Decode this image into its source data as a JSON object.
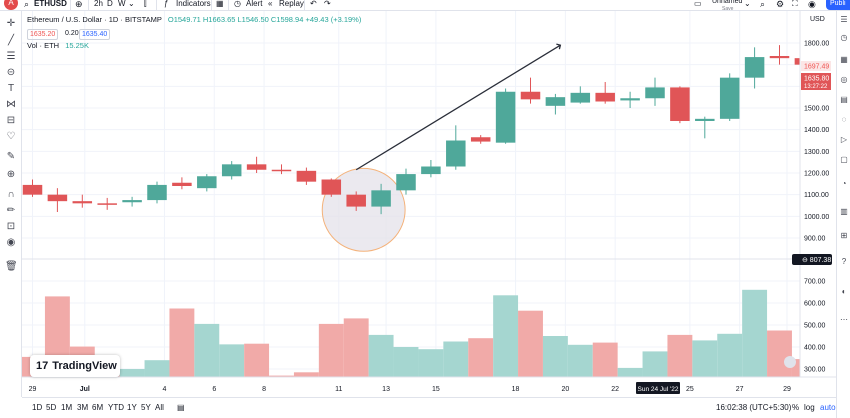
{
  "topbar": {
    "avatar_letter": "A",
    "symbol": "ETHUSD",
    "interval": "2h",
    "interval_d": "D",
    "interval_w": "W",
    "indicators_label": "Indicators",
    "alert_label": "Alert",
    "replay_label": "Replay",
    "layout_name": "Unnamed",
    "layout_sub": "Save",
    "publish_label": "Publi"
  },
  "legend": {
    "title": "Ethereum / U.S. Dollar · 1D · BITSTAMP",
    "ohlc": "O1549.71 H1663.65 L1546.50 C1598.94 +49.43 (+3.19%)",
    "bid": "1635.20",
    "spread": "0.20",
    "ask": "1635.40",
    "volume_label": "Vol · ETH",
    "volume_value": "15.25K"
  },
  "watermark": {
    "logo": "TradingView",
    "logo_mark": "17"
  },
  "bottombar": {
    "ranges": [
      "1D",
      "5D",
      "1M",
      "3M",
      "6M",
      "YTD",
      "1Y",
      "5Y",
      "All"
    ],
    "time": "16:02:38 (UTC+5:30)",
    "percent": "%",
    "log": "log",
    "auto": "auto"
  },
  "chart_data": {
    "type": "candlestick",
    "currency_label": "USD",
    "price_ticks": [
      "1800.00",
      "1700.00",
      "1600.00",
      "1500.00",
      "1400.00",
      "1300.00",
      "1200.00",
      "1100.00",
      "1000.00",
      "900.00"
    ],
    "volume_ticks": [
      "700.00",
      "600.00",
      "500.00",
      "400.00",
      "300.00"
    ],
    "x_labels": [
      "29",
      "Jul",
      "4",
      "6",
      "8",
      "11",
      "13",
      "15",
      "18",
      "20",
      "22",
      "25",
      "27",
      "29"
    ],
    "crosshair_date": "Sun 24 Jul '22",
    "last_price_label": "1697.49",
    "bid_ask_label": "1635.80",
    "countdown_label": "13:27:22",
    "crosshair_price": "807.38",
    "candles": [
      {
        "o": 1145,
        "h": 1170,
        "l": 1090,
        "c": 1100
      },
      {
        "o": 1100,
        "h": 1130,
        "l": 1020,
        "c": 1070
      },
      {
        "o": 1070,
        "h": 1100,
        "l": 1040,
        "c": 1060
      },
      {
        "o": 1060,
        "h": 1085,
        "l": 1030,
        "c": 1055
      },
      {
        "o": 1065,
        "h": 1090,
        "l": 1045,
        "c": 1075
      },
      {
        "o": 1075,
        "h": 1160,
        "l": 1060,
        "c": 1145
      },
      {
        "o": 1155,
        "h": 1180,
        "l": 1125,
        "c": 1140
      },
      {
        "o": 1130,
        "h": 1195,
        "l": 1115,
        "c": 1185
      },
      {
        "o": 1185,
        "h": 1255,
        "l": 1170,
        "c": 1240
      },
      {
        "o": 1240,
        "h": 1275,
        "l": 1200,
        "c": 1215
      },
      {
        "o": 1215,
        "h": 1240,
        "l": 1195,
        "c": 1210
      },
      {
        "o": 1210,
        "h": 1225,
        "l": 1145,
        "c": 1160
      },
      {
        "o": 1170,
        "h": 1175,
        "l": 1090,
        "c": 1100
      },
      {
        "o": 1100,
        "h": 1115,
        "l": 1025,
        "c": 1045
      },
      {
        "o": 1045,
        "h": 1150,
        "l": 1010,
        "c": 1120
      },
      {
        "o": 1120,
        "h": 1220,
        "l": 1100,
        "c": 1195
      },
      {
        "o": 1195,
        "h": 1260,
        "l": 1180,
        "c": 1230
      },
      {
        "o": 1230,
        "h": 1420,
        "l": 1215,
        "c": 1350
      },
      {
        "o": 1365,
        "h": 1375,
        "l": 1335,
        "c": 1345
      },
      {
        "o": 1340,
        "h": 1590,
        "l": 1335,
        "c": 1575
      },
      {
        "o": 1575,
        "h": 1640,
        "l": 1520,
        "c": 1540
      },
      {
        "o": 1510,
        "h": 1565,
        "l": 1470,
        "c": 1550
      },
      {
        "o": 1525,
        "h": 1600,
        "l": 1520,
        "c": 1570
      },
      {
        "o": 1570,
        "h": 1620,
        "l": 1520,
        "c": 1530
      },
      {
        "o": 1535,
        "h": 1575,
        "l": 1500,
        "c": 1545
      },
      {
        "o": 1545,
        "h": 1640,
        "l": 1510,
        "c": 1595
      },
      {
        "o": 1595,
        "h": 1600,
        "l": 1430,
        "c": 1440
      },
      {
        "o": 1440,
        "h": 1460,
        "l": 1360,
        "c": 1450
      },
      {
        "o": 1450,
        "h": 1660,
        "l": 1440,
        "c": 1640
      },
      {
        "o": 1640,
        "h": 1780,
        "l": 1590,
        "c": 1735
      },
      {
        "o": 1740,
        "h": 1790,
        "l": 1700,
        "c": 1730
      },
      {
        "o": 1730,
        "h": 1755,
        "l": 1690,
        "c": 1700
      }
    ],
    "volumes": [
      355,
      630,
      402,
      290,
      300,
      340,
      575,
      505,
      412,
      415,
      270,
      285,
      505,
      530,
      455,
      400,
      390,
      425,
      440,
      635,
      565,
      450,
      410,
      420,
      305,
      380,
      455,
      430,
      460,
      660,
      475,
      345
    ],
    "drawing": {
      "type": "trend-line",
      "start": {
        "bar": 13.0,
        "price": 1215
      },
      "end": {
        "bar": 21.2,
        "price": 1790
      }
    },
    "highlight_circle": {
      "bar": 13.3,
      "price": 1030,
      "radius_bars": 3.2
    },
    "colors": {
      "up": "#4fa89a",
      "down": "#e05557",
      "vol_up": "#a5d6d0",
      "vol_down": "#f1aaa8",
      "grid": "#f0f3fa",
      "line": "#2a2e39",
      "circle_fill": "#e4e2ea",
      "circle_stroke": "#f4b27a"
    }
  }
}
